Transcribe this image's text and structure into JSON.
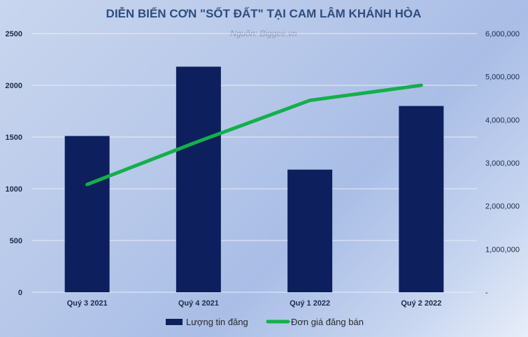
{
  "chart_data": {
    "type": "bar",
    "title": "DIỄN BIẾN CƠN \"SỐT ĐẤT\" TẠI CAM LÂM KHÁNH HÒA",
    "subtitle": "Nguồn: Biggee.vn",
    "categories": [
      "Quý 3 2021",
      "Quý 4 2021",
      "Quý 1 2022",
      "Quý 2 2022"
    ],
    "series": [
      {
        "name": "Lượng tin đăng",
        "type": "bar",
        "axis": "left",
        "color": "#0d1f5c",
        "values": [
          1510,
          2180,
          1185,
          1800
        ]
      },
      {
        "name": "Đơn giá đăng bán",
        "type": "line",
        "axis": "right",
        "color": "#12b04a",
        "values": [
          2500000,
          3500000,
          4450000,
          4800000
        ]
      }
    ],
    "y_left": {
      "min": 0,
      "max": 2500,
      "ticks": [
        "0",
        "500",
        "1000",
        "1500",
        "2000",
        "2500"
      ]
    },
    "y_right": {
      "min": 0,
      "max": 6000000,
      "ticks": [
        "-",
        "1,000,000",
        "2,000,000",
        "3,000,000",
        "4,000,000",
        "5,000,000",
        "6,000,000"
      ]
    },
    "grid": true,
    "legend_position": "bottom"
  }
}
